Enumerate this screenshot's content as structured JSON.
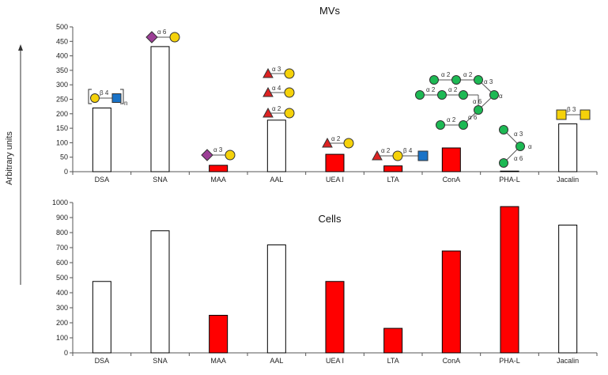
{
  "colors": {
    "white_bar": "#ffffff",
    "red_bar": "#ff0000",
    "outline": "#000000",
    "galactose": "#f5d20a",
    "glcnac": "#1a73c7",
    "sialic": "#9c3f96",
    "fucose": "#dd2222",
    "mannose": "#1db954",
    "galnac": "#f5d20a"
  },
  "shared_ylabel": "Arbitrary units",
  "chart_data": [
    {
      "type": "bar",
      "title": "MVs",
      "categories": [
        "DSA",
        "SNA",
        "MAA",
        "AAL",
        "UEA I",
        "LTA",
        "ConA",
        "PHA-L",
        "Jacalin"
      ],
      "values": [
        220,
        432,
        22,
        178,
        60,
        20,
        82,
        2,
        165
      ],
      "bar_colors": [
        "white",
        "white",
        "red",
        "white",
        "red",
        "red",
        "red",
        "red",
        "white"
      ],
      "ylim": [
        0,
        500
      ],
      "yticks": [
        0,
        50,
        100,
        150,
        200,
        250,
        300,
        350,
        400,
        450,
        500
      ]
    },
    {
      "type": "bar",
      "title": "Cells",
      "categories": [
        "DSA",
        "SNA",
        "MAA",
        "AAL",
        "UEA I",
        "LTA",
        "ConA",
        "PHA-L",
        "Jacalin"
      ],
      "values": [
        475,
        812,
        250,
        718,
        475,
        163,
        678,
        973,
        850
      ],
      "bar_colors": [
        "white",
        "white",
        "red",
        "white",
        "red",
        "red",
        "red",
        "white_red_placeholder",
        "white"
      ],
      "ylim": [
        0,
        1000
      ],
      "yticks": [
        0,
        100,
        200,
        300,
        400,
        500,
        600,
        700,
        800,
        900,
        1000
      ]
    }
  ],
  "glycan_labels": {
    "dsa_link": "β 4",
    "dsa_repeat": "n",
    "sna_link": "α 6",
    "maa_link": "α 3",
    "aal_links": [
      "α 3",
      "α 4",
      "α 2"
    ],
    "uea_link": "α 2",
    "lta_links": [
      "α 2",
      "β 4"
    ],
    "cona_links": [
      "α 2",
      "α 2",
      "α 2",
      "α 2",
      "α 3",
      "α 6",
      "α 2",
      "α 6",
      "α"
    ],
    "phal_links": [
      "α 3",
      "α 6",
      "α"
    ],
    "jacalin_link": "β 3"
  }
}
